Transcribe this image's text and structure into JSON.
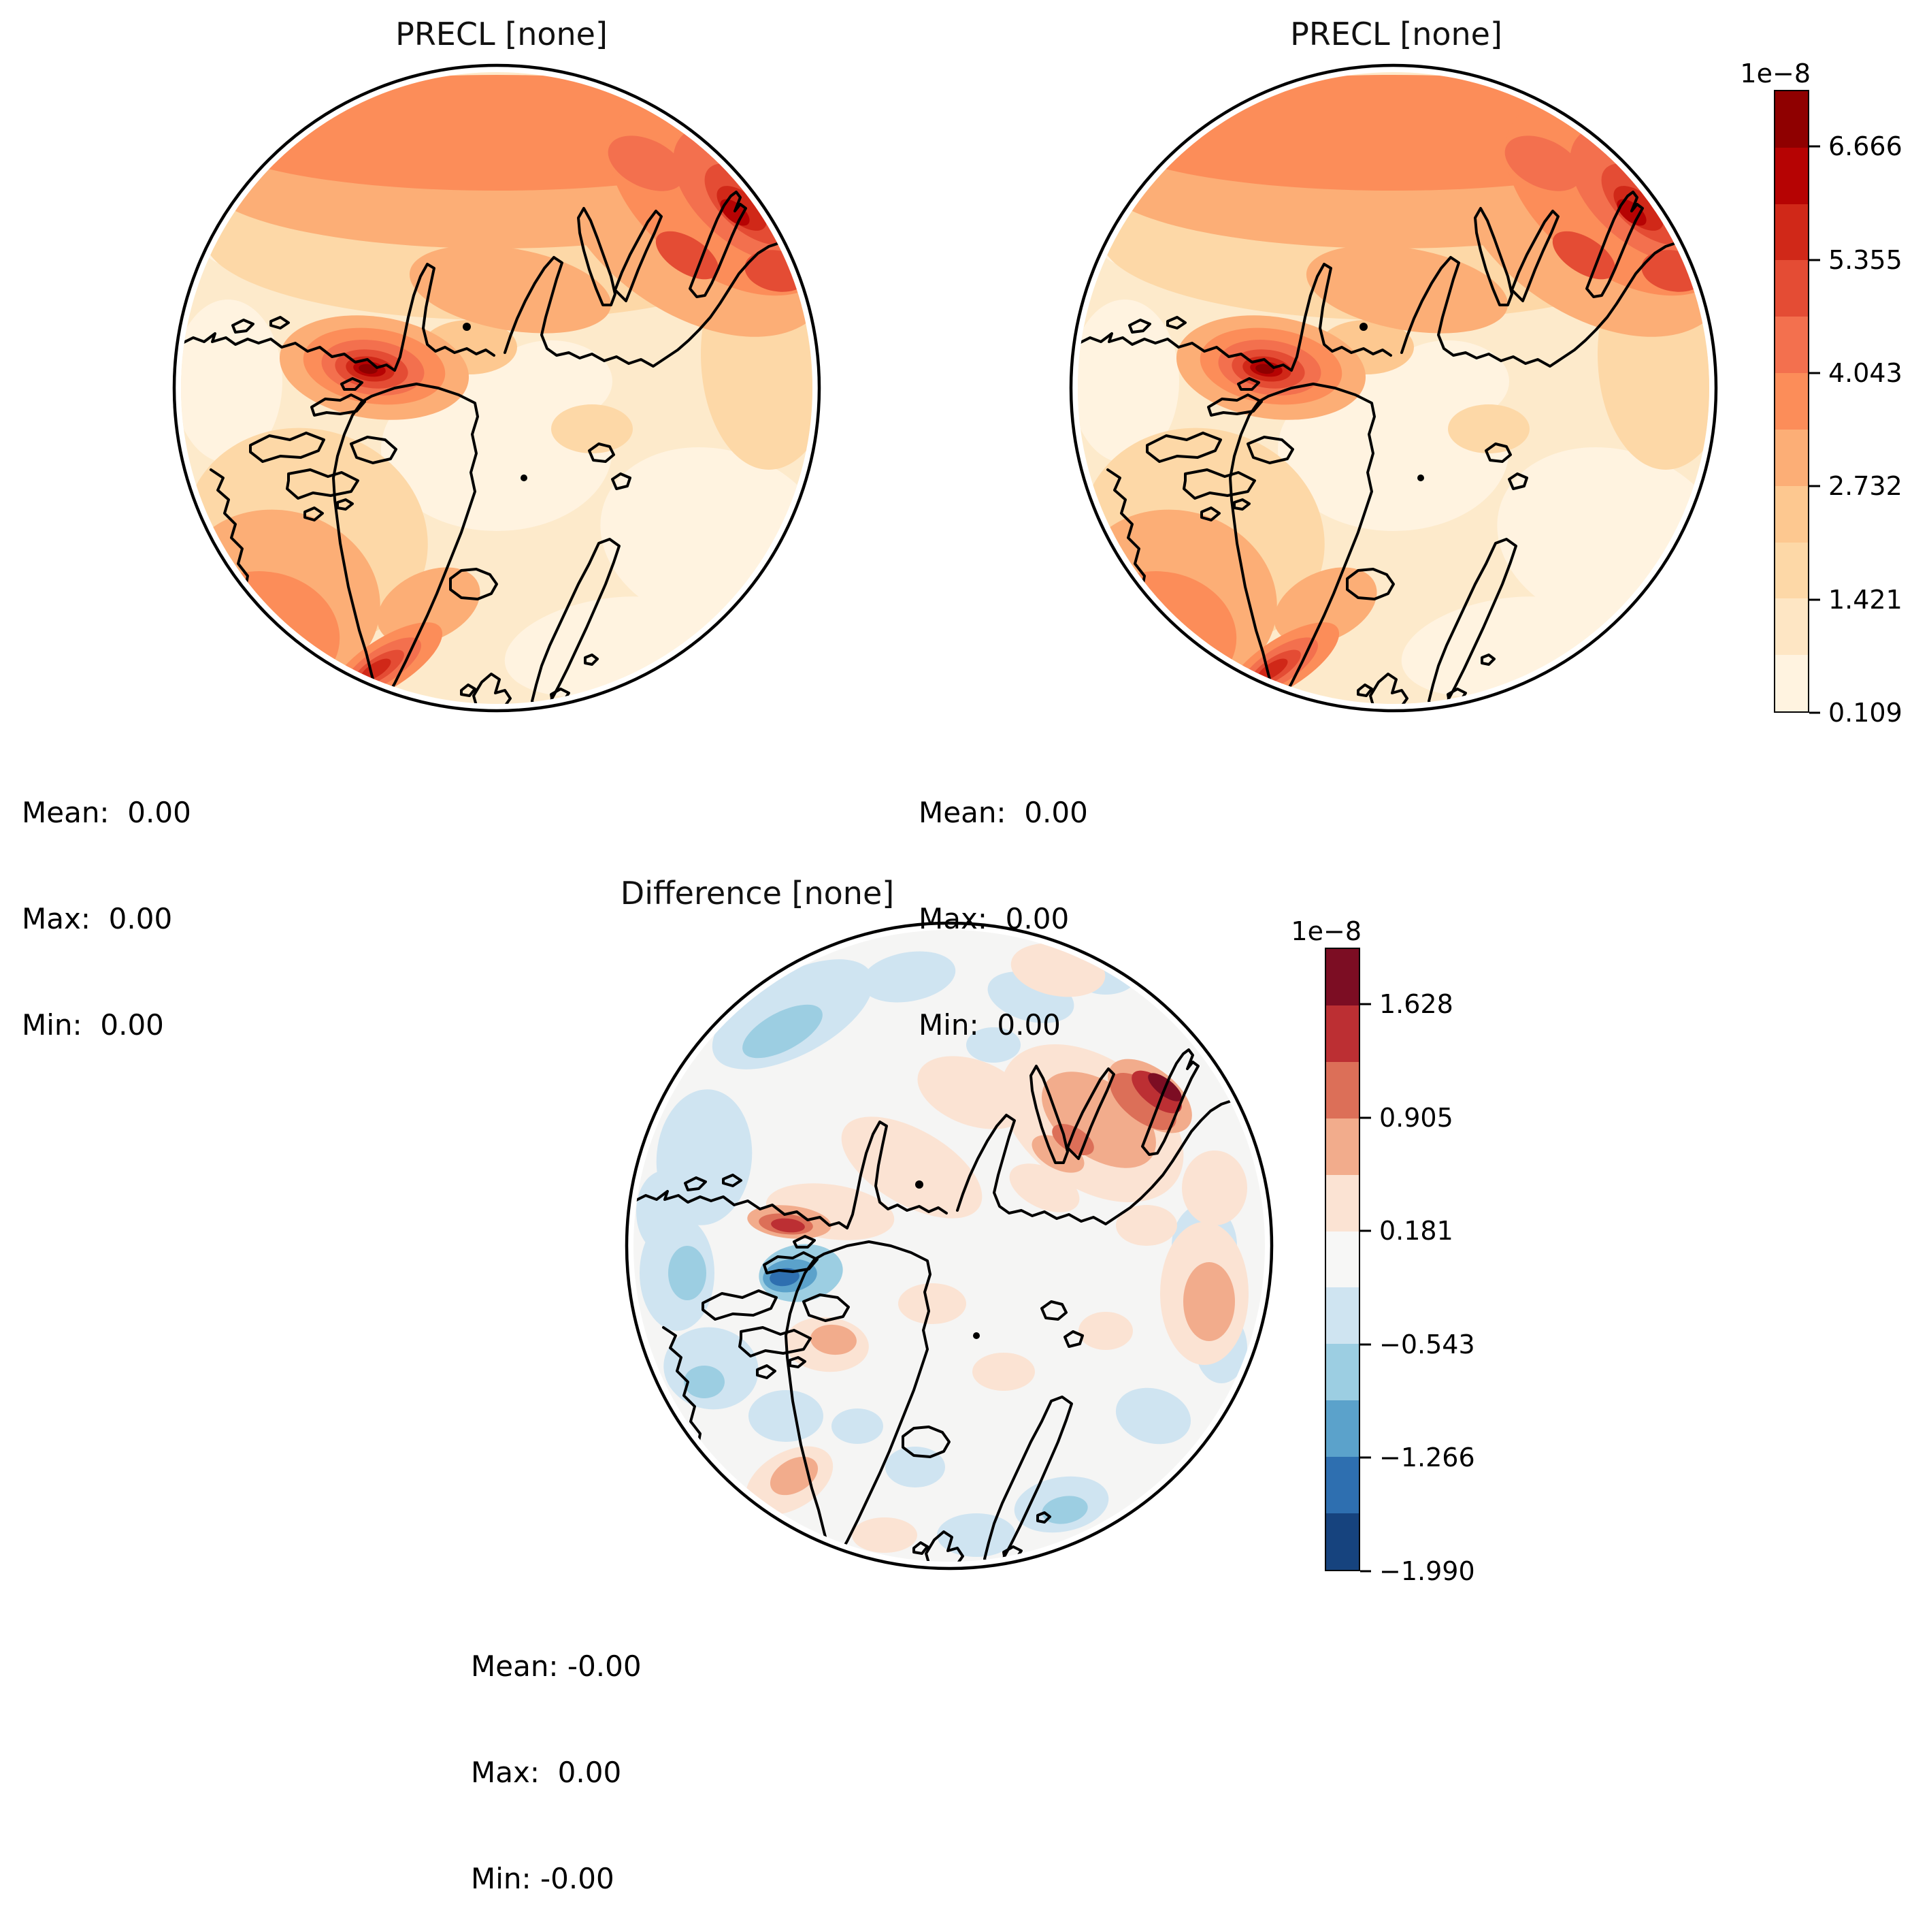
{
  "figure": {
    "panels": [
      {
        "title": "PRECL [none]",
        "stats": [
          "Mean:  0.00",
          "Max:  0.00",
          "Min:  0.00"
        ]
      },
      {
        "title": "PRECL [none]",
        "stats": [
          "Mean:  0.00",
          "Max:  0.00",
          "Min:  0.00"
        ]
      },
      {
        "title": "Difference [none]",
        "stats": [
          "Mean: -0.00",
          "Max:  0.00",
          "Min: -0.00"
        ]
      }
    ],
    "colorbars": [
      {
        "id": "precl",
        "offset_label": "1e−8",
        "tick_labels_top_to_bottom": [
          "6.666",
          "5.355",
          "4.043",
          "2.732",
          "1.421",
          "0.109"
        ],
        "segments_top_to_bottom": [
          "#8f0000",
          "#b60303",
          "#d02818",
          "#e44c34",
          "#f3704e",
          "#fc8d59",
          "#fcae76",
          "#fdc890",
          "#fdd8a7",
          "#fee6c4",
          "#fff3e0"
        ]
      },
      {
        "id": "difference",
        "offset_label": "1e−8",
        "tick_labels_top_to_bottom": [
          "1.628",
          "0.905",
          "0.181",
          "−0.543",
          "−1.266",
          "−1.990"
        ],
        "segments_top_to_bottom": [
          "#7c0d23",
          "#bc2f33",
          "#dc6f58",
          "#f2ac8c",
          "#fbe3d3",
          "#f7f7f6",
          "#cfe4f1",
          "#9ccee2",
          "#5ba2cb",
          "#2e6fb0",
          "#16437e"
        ]
      }
    ]
  },
  "chart_data": [
    {
      "type": "heatmap",
      "subtype": "north-polar-stereographic-contour-map",
      "title": "PRECL [none]",
      "units_scale": "1e-8",
      "colormap": "OrRd",
      "n_color_bins": 11,
      "contour_levels_x1e8": [
        0.109,
        0.765,
        1.421,
        2.076,
        2.732,
        3.388,
        4.043,
        4.699,
        5.355,
        6.01,
        6.666,
        7.322
      ],
      "colorbar_ticks_x1e8": [
        0.109,
        1.421,
        2.732,
        4.043,
        5.355,
        6.666
      ],
      "stats": {
        "mean": 0.0,
        "max": 0.0,
        "min": 0.0
      },
      "legend_position": "right-of-second-panel"
    },
    {
      "type": "heatmap",
      "subtype": "north-polar-stereographic-contour-map",
      "title": "PRECL [none]",
      "units_scale": "1e-8",
      "colormap": "OrRd",
      "n_color_bins": 11,
      "contour_levels_x1e8": [
        0.109,
        0.765,
        1.421,
        2.076,
        2.732,
        3.388,
        4.043,
        4.699,
        5.355,
        6.01,
        6.666,
        7.322
      ],
      "colorbar_ticks_x1e8": [
        0.109,
        1.421,
        2.732,
        4.043,
        5.355,
        6.666
      ],
      "stats": {
        "mean": 0.0,
        "max": 0.0,
        "min": 0.0
      },
      "legend_position": "shared-with-first-panel"
    },
    {
      "type": "heatmap",
      "subtype": "north-polar-stereographic-contour-map",
      "title": "Difference [none]",
      "units_scale": "1e-8",
      "colormap": "RdBu_r",
      "n_color_bins": 11,
      "contour_levels_x1e8": [
        -1.99,
        -1.628,
        -1.266,
        -0.905,
        -0.543,
        -0.181,
        0.181,
        0.543,
        0.905,
        1.266,
        1.628,
        1.99
      ],
      "colorbar_ticks_x1e8": [
        -1.99,
        -1.266,
        -0.543,
        0.181,
        0.905,
        1.628
      ],
      "stats": {
        "mean": -0.0,
        "max": 0.0,
        "min": -0.0
      },
      "legend_position": "right-of-panel"
    }
  ]
}
